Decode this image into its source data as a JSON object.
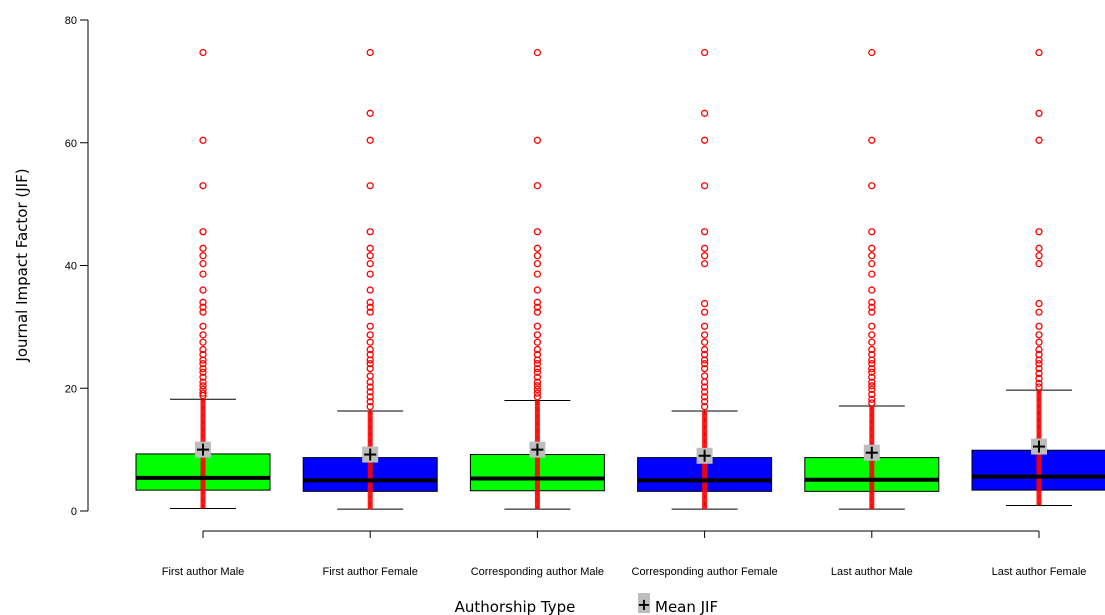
{
  "chart_data": {
    "type": "box",
    "xlabel": "Authorship Type",
    "ylabel": "Journal Impact Factor (JIF)",
    "ylim": [
      0,
      80
    ],
    "yticks": [
      0,
      20,
      40,
      60,
      80
    ],
    "grid": false,
    "legend": {
      "label": "Mean JIF",
      "marker": "+",
      "placement": "bottom-center"
    },
    "colors": {
      "green": "#00ff00",
      "blue": "#0000ff",
      "outlier": "#ff0000",
      "mean_marker_bg": "#bdbdbd"
    },
    "categories": [
      "First author Male",
      "First author Female",
      "Corresponding author Male",
      "Corresponding  author Female",
      "Last author Male",
      "Last author Female"
    ],
    "boxes": [
      {
        "category": "First author Male",
        "color": "#00ff00",
        "whisker_low": 0.4,
        "q1": 3.4,
        "median": 5.4,
        "q3": 9.3,
        "whisker_high": 18.2,
        "mean": 10.0,
        "outliers": [
          74.7,
          60.4,
          53.0,
          45.5,
          42.8,
          41.6,
          40.3,
          38.6,
          36.0,
          34.0,
          33.2,
          32.4,
          30.1,
          28.7,
          27.5,
          26.3,
          25.5,
          24.6,
          24.0,
          23.2,
          22.6,
          21.8,
          21.0,
          20.4,
          19.8,
          19.2,
          18.8
        ]
      },
      {
        "category": "First author Female",
        "color": "#0000ff",
        "whisker_low": 0.3,
        "q1": 3.2,
        "median": 5.0,
        "q3": 8.7,
        "whisker_high": 16.3,
        "mean": 9.2,
        "outliers": [
          74.7,
          64.8,
          60.4,
          53.0,
          45.5,
          42.8,
          41.6,
          40.3,
          38.6,
          36.0,
          34.0,
          33.2,
          32.4,
          30.1,
          28.7,
          27.5,
          26.3,
          25.5,
          24.6,
          24.0,
          23.2,
          22.0,
          21.0,
          20.2,
          19.4,
          18.6,
          17.8,
          17.0
        ]
      },
      {
        "category": "Corresponding author Male",
        "color": "#00ff00",
        "whisker_low": 0.3,
        "q1": 3.3,
        "median": 5.3,
        "q3": 9.2,
        "whisker_high": 18.0,
        "mean": 10.0,
        "outliers": [
          74.7,
          60.4,
          53.0,
          45.5,
          42.8,
          41.6,
          40.3,
          38.6,
          36.0,
          34.0,
          33.2,
          32.4,
          30.1,
          28.7,
          27.5,
          26.3,
          25.5,
          24.6,
          24.0,
          23.2,
          22.6,
          21.8,
          21.0,
          20.4,
          19.8,
          19.2,
          18.6
        ]
      },
      {
        "category": "Corresponding  author Female",
        "color": "#0000ff",
        "whisker_low": 0.3,
        "q1": 3.2,
        "median": 5.0,
        "q3": 8.7,
        "whisker_high": 16.3,
        "mean": 9.0,
        "outliers": [
          74.7,
          64.8,
          60.4,
          53.0,
          45.5,
          42.8,
          41.6,
          40.3,
          33.8,
          32.4,
          30.1,
          28.7,
          27.5,
          26.3,
          25.5,
          24.6,
          24.0,
          23.2,
          22.0,
          21.0,
          20.2,
          19.4,
          18.6,
          17.8,
          17.0
        ]
      },
      {
        "category": "Last author Male",
        "color": "#00ff00",
        "whisker_low": 0.3,
        "q1": 3.2,
        "median": 5.1,
        "q3": 8.7,
        "whisker_high": 17.1,
        "mean": 9.5,
        "outliers": [
          74.7,
          60.4,
          53.0,
          45.5,
          42.8,
          41.6,
          40.3,
          38.6,
          36.0,
          34.0,
          33.2,
          32.4,
          30.1,
          28.7,
          27.5,
          26.3,
          25.5,
          24.6,
          24.0,
          23.2,
          22.6,
          21.8,
          21.0,
          20.4,
          19.8,
          19.0,
          18.2,
          17.6
        ]
      },
      {
        "category": "Last author Female",
        "color": "#0000ff",
        "whisker_low": 0.9,
        "q1": 3.4,
        "median": 5.6,
        "q3": 9.9,
        "whisker_high": 19.7,
        "mean": 10.5,
        "outliers": [
          74.7,
          64.8,
          60.4,
          45.5,
          42.8,
          41.6,
          40.3,
          33.8,
          32.4,
          30.1,
          28.7,
          27.5,
          26.3,
          25.5,
          24.6,
          24.0,
          23.2,
          22.4,
          21.6,
          20.8,
          20.2
        ]
      }
    ]
  }
}
